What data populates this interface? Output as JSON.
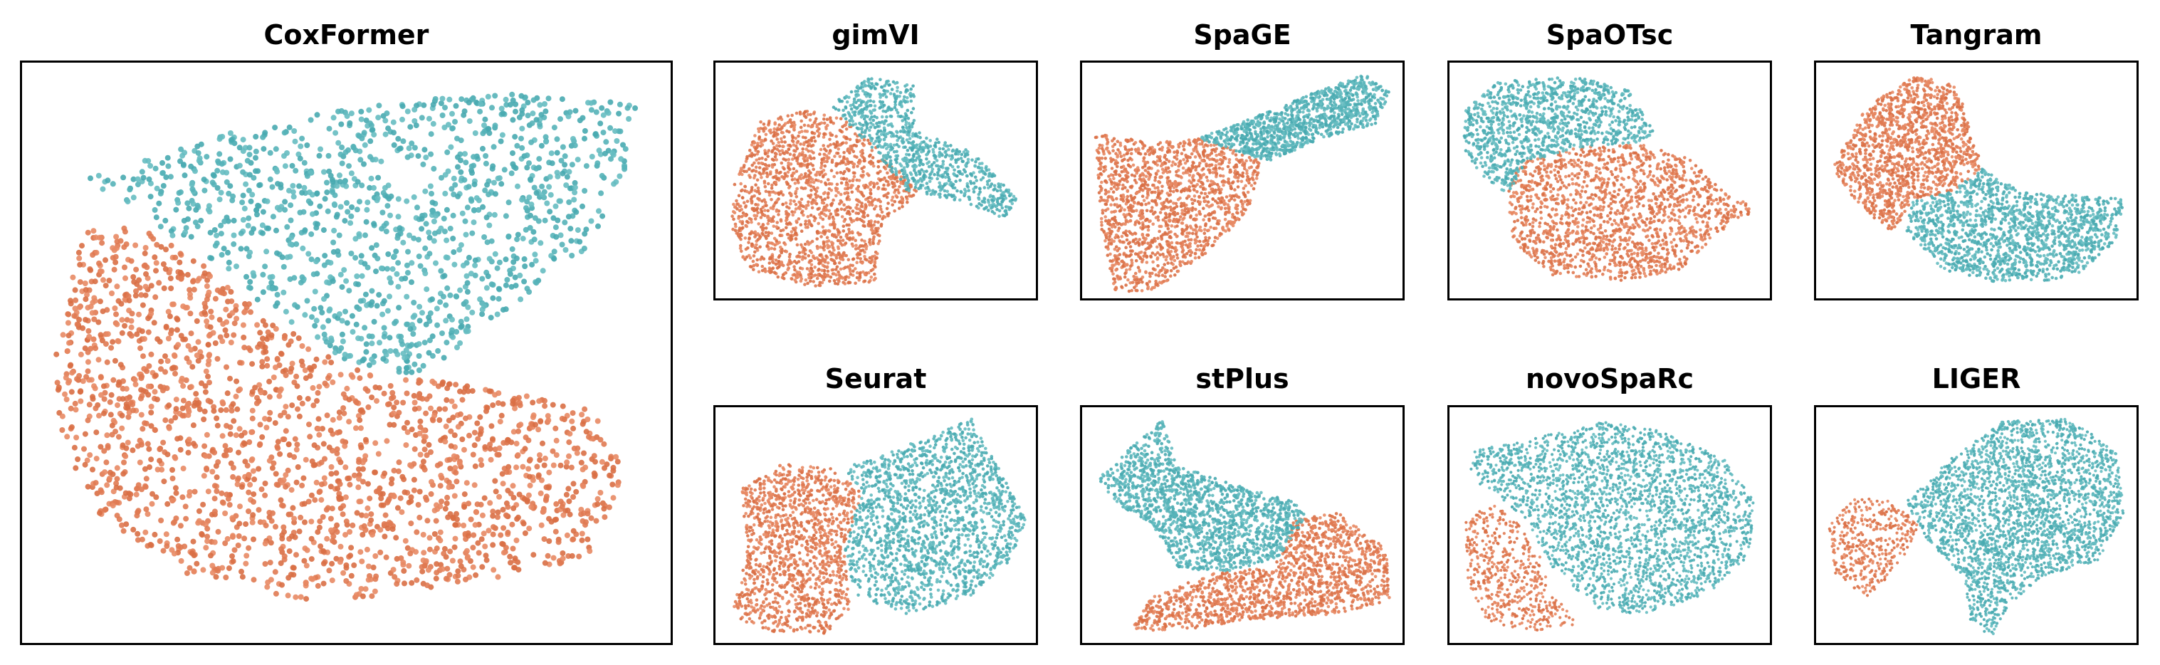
{
  "colors": {
    "orange": "#e07a52",
    "teal": "#55b3b8"
  },
  "chart_data": [
    {
      "type": "scatter",
      "title": "CoxFormer",
      "series": [
        {
          "color": "orange",
          "approx_points": 1900
        },
        {
          "color": "teal",
          "approx_points": 1200
        }
      ]
    },
    {
      "type": "scatter",
      "title": "gimVI",
      "series": [
        {
          "color": "orange",
          "approx_points": 1700
        },
        {
          "color": "teal",
          "approx_points": 900
        }
      ]
    },
    {
      "type": "scatter",
      "title": "SpaGE",
      "series": [
        {
          "color": "orange",
          "approx_points": 1500
        },
        {
          "color": "teal",
          "approx_points": 1100
        }
      ]
    },
    {
      "type": "scatter",
      "title": "SpaOTsc",
      "series": [
        {
          "color": "orange",
          "approx_points": 1600
        },
        {
          "color": "teal",
          "approx_points": 1100
        }
      ]
    },
    {
      "type": "scatter",
      "title": "Tangram",
      "series": [
        {
          "color": "orange",
          "approx_points": 1300
        },
        {
          "color": "teal",
          "approx_points": 1500
        }
      ]
    },
    {
      "type": "scatter",
      "title": "Seurat",
      "series": [
        {
          "color": "orange",
          "approx_points": 1300
        },
        {
          "color": "teal",
          "approx_points": 1700
        }
      ]
    },
    {
      "type": "scatter",
      "title": "stPlus",
      "series": [
        {
          "color": "orange",
          "approx_points": 1400
        },
        {
          "color": "teal",
          "approx_points": 1500
        }
      ]
    },
    {
      "type": "scatter",
      "title": "novoSpaRc",
      "series": [
        {
          "color": "orange",
          "approx_points": 500
        },
        {
          "color": "teal",
          "approx_points": 2600
        }
      ]
    },
    {
      "type": "scatter",
      "title": "LIGER",
      "series": [
        {
          "color": "orange",
          "approx_points": 400
        },
        {
          "color": "teal",
          "approx_points": 2600
        }
      ]
    }
  ]
}
